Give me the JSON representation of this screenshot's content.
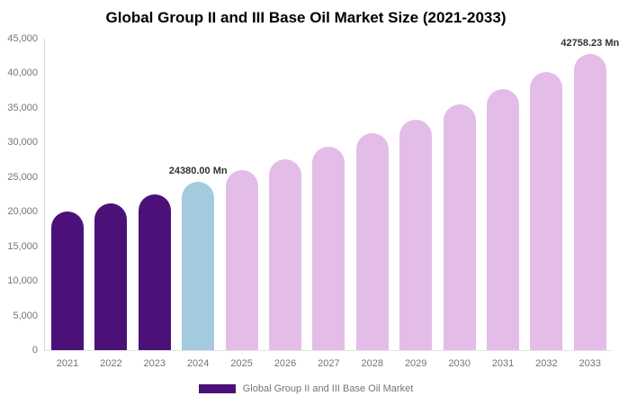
{
  "chart_data": {
    "type": "bar",
    "title": "Global Group II and III Base Oil Market Size (2021-2033)",
    "categories": [
      "2021",
      "2022",
      "2023",
      "2024",
      "2025",
      "2026",
      "2027",
      "2028",
      "2029",
      "2030",
      "2031",
      "2032",
      "2033"
    ],
    "values": [
      20000,
      21200,
      22500,
      24380,
      25950,
      27620,
      29400,
      31290,
      33310,
      35450,
      37730,
      40160,
      42758.23
    ],
    "unit": "Mn",
    "xlabel": "",
    "ylabel": "",
    "ylim": [
      0,
      45000
    ],
    "ytick_step": 5000,
    "ytick_labels": [
      "0",
      "5,000",
      "10,000",
      "15,000",
      "20,000",
      "25,000",
      "30,000",
      "35,000",
      "40,000",
      "45,000"
    ],
    "grid": "off",
    "legend_position": "bottom",
    "bar_colors": [
      "#4b1179",
      "#4b1179",
      "#4b1179",
      "#a4cade",
      "#e3bde7",
      "#e3bde7",
      "#e3bde7",
      "#e3bde7",
      "#e3bde7",
      "#e3bde7",
      "#e3bde7",
      "#e3bde7",
      "#e3bde7"
    ],
    "annotations": [
      {
        "index": 3,
        "text": "24380.00 Mn"
      },
      {
        "index": 12,
        "text": "42758.23 Mn"
      }
    ]
  },
  "colors": {
    "historical_bar": "#4b1179",
    "base_year_bar": "#a4cade",
    "forecast_bar": "#e3bde7",
    "axis_text": "#757575",
    "data_label_text": "#333333",
    "title_text": "#000000",
    "axis_line": "#d9d9d9"
  },
  "legend": {
    "swatch_color": "#4b1179",
    "label": "Global Group II and III Base Oil Market"
  }
}
